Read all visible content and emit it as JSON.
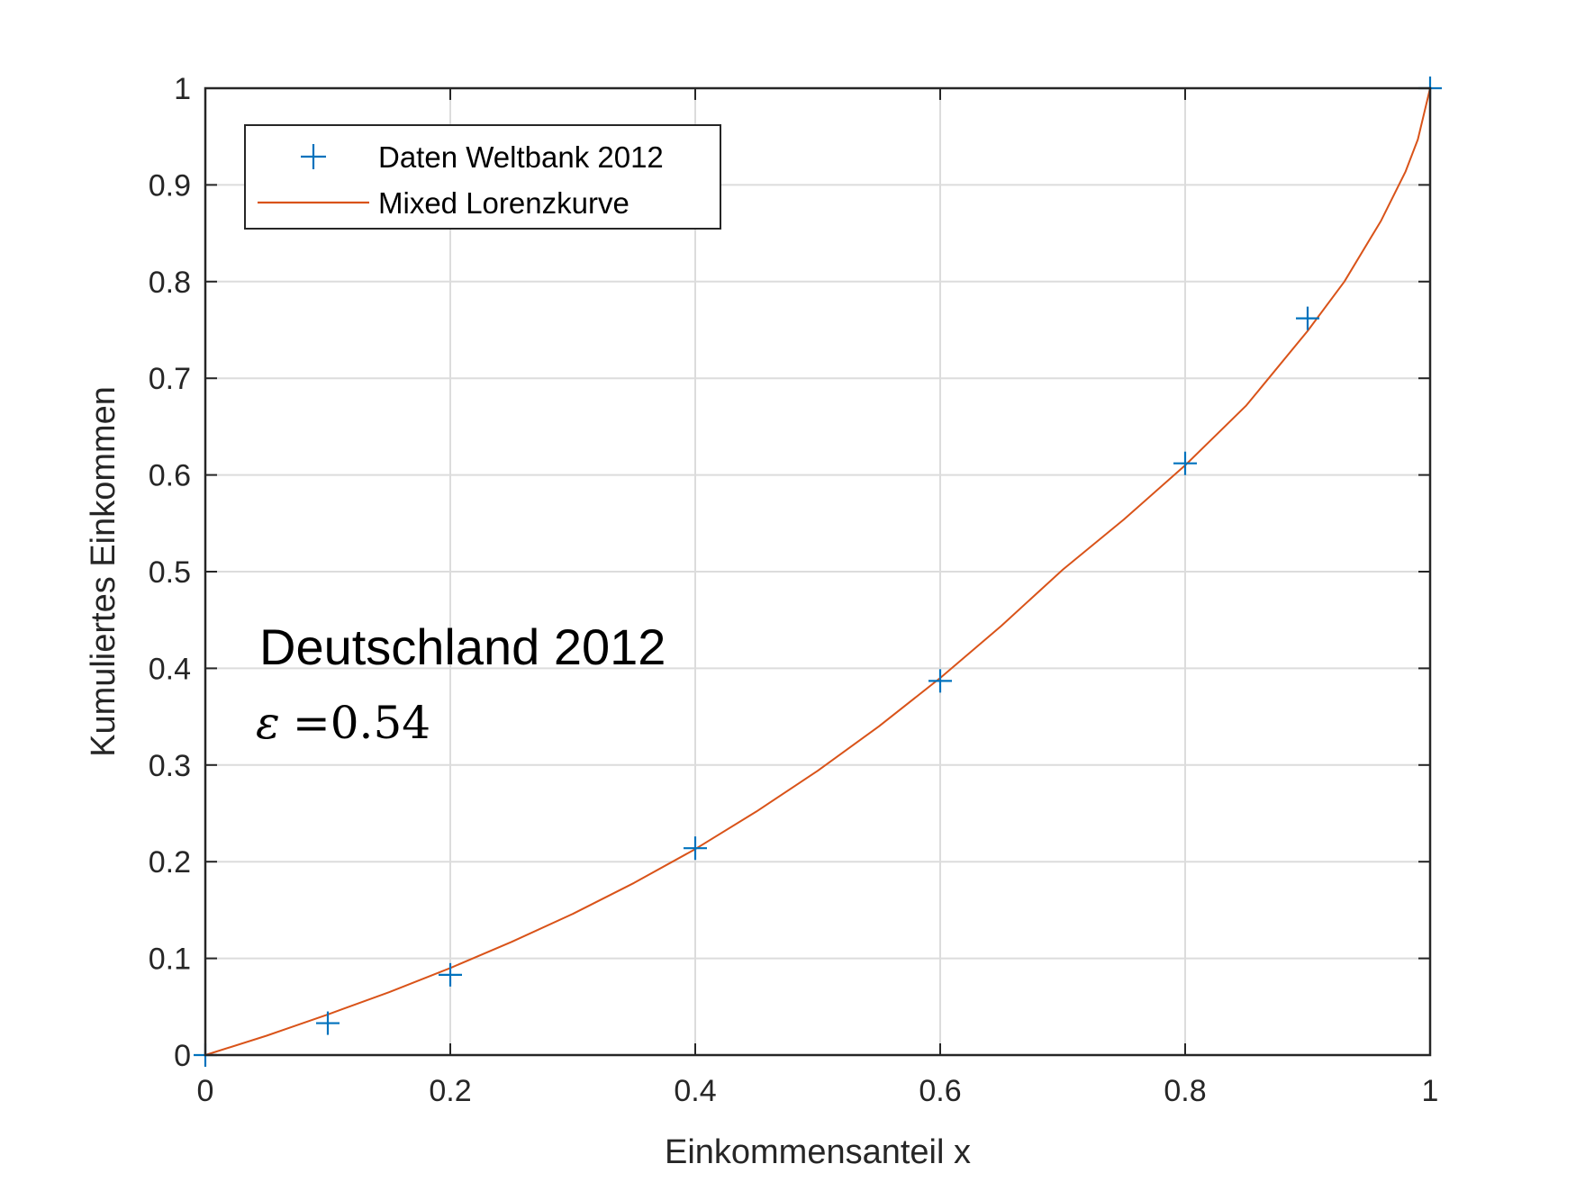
{
  "chart_data": {
    "type": "line",
    "xlabel": "Einkommensanteil x",
    "ylabel": "Kumuliertes Einkommen",
    "xlim": [
      0,
      1
    ],
    "ylim": [
      0,
      1
    ],
    "grid": true,
    "legend_position": "top-left",
    "x_ticks": [
      "0",
      "0.2",
      "0.4",
      "0.6",
      "0.8",
      "1"
    ],
    "y_ticks": [
      "0",
      "0.1",
      "0.2",
      "0.3",
      "0.4",
      "0.5",
      "0.6",
      "0.7",
      "0.8",
      "0.9",
      "1"
    ],
    "annotations": {
      "title": "Deutschland 2012",
      "epsilon_symbol": "ε",
      "epsilon_text": "=0.54"
    },
    "series": [
      {
        "name": "Daten Weltbank 2012",
        "kind": "marker",
        "marker": "+",
        "color": "#0072BD",
        "x": [
          0,
          0.1,
          0.2,
          0.4,
          0.6,
          0.8,
          0.9,
          1.0
        ],
        "y": [
          0,
          0.033,
          0.083,
          0.214,
          0.387,
          0.612,
          0.762,
          1.0
        ]
      },
      {
        "name": "Mixed Lorenzkurve",
        "kind": "line",
        "color": "#D95319",
        "x": [
          0,
          0.05,
          0.1,
          0.15,
          0.2,
          0.25,
          0.3,
          0.35,
          0.4,
          0.45,
          0.5,
          0.55,
          0.6,
          0.65,
          0.7,
          0.75,
          0.8,
          0.85,
          0.9,
          0.93,
          0.96,
          0.98,
          0.99,
          1.0
        ],
        "y": [
          0,
          0.02,
          0.042,
          0.065,
          0.09,
          0.117,
          0.146,
          0.178,
          0.213,
          0.252,
          0.294,
          0.34,
          0.39,
          0.444,
          0.502,
          0.554,
          0.61,
          0.672,
          0.749,
          0.8,
          0.863,
          0.914,
          0.947,
          1.0
        ]
      }
    ]
  }
}
